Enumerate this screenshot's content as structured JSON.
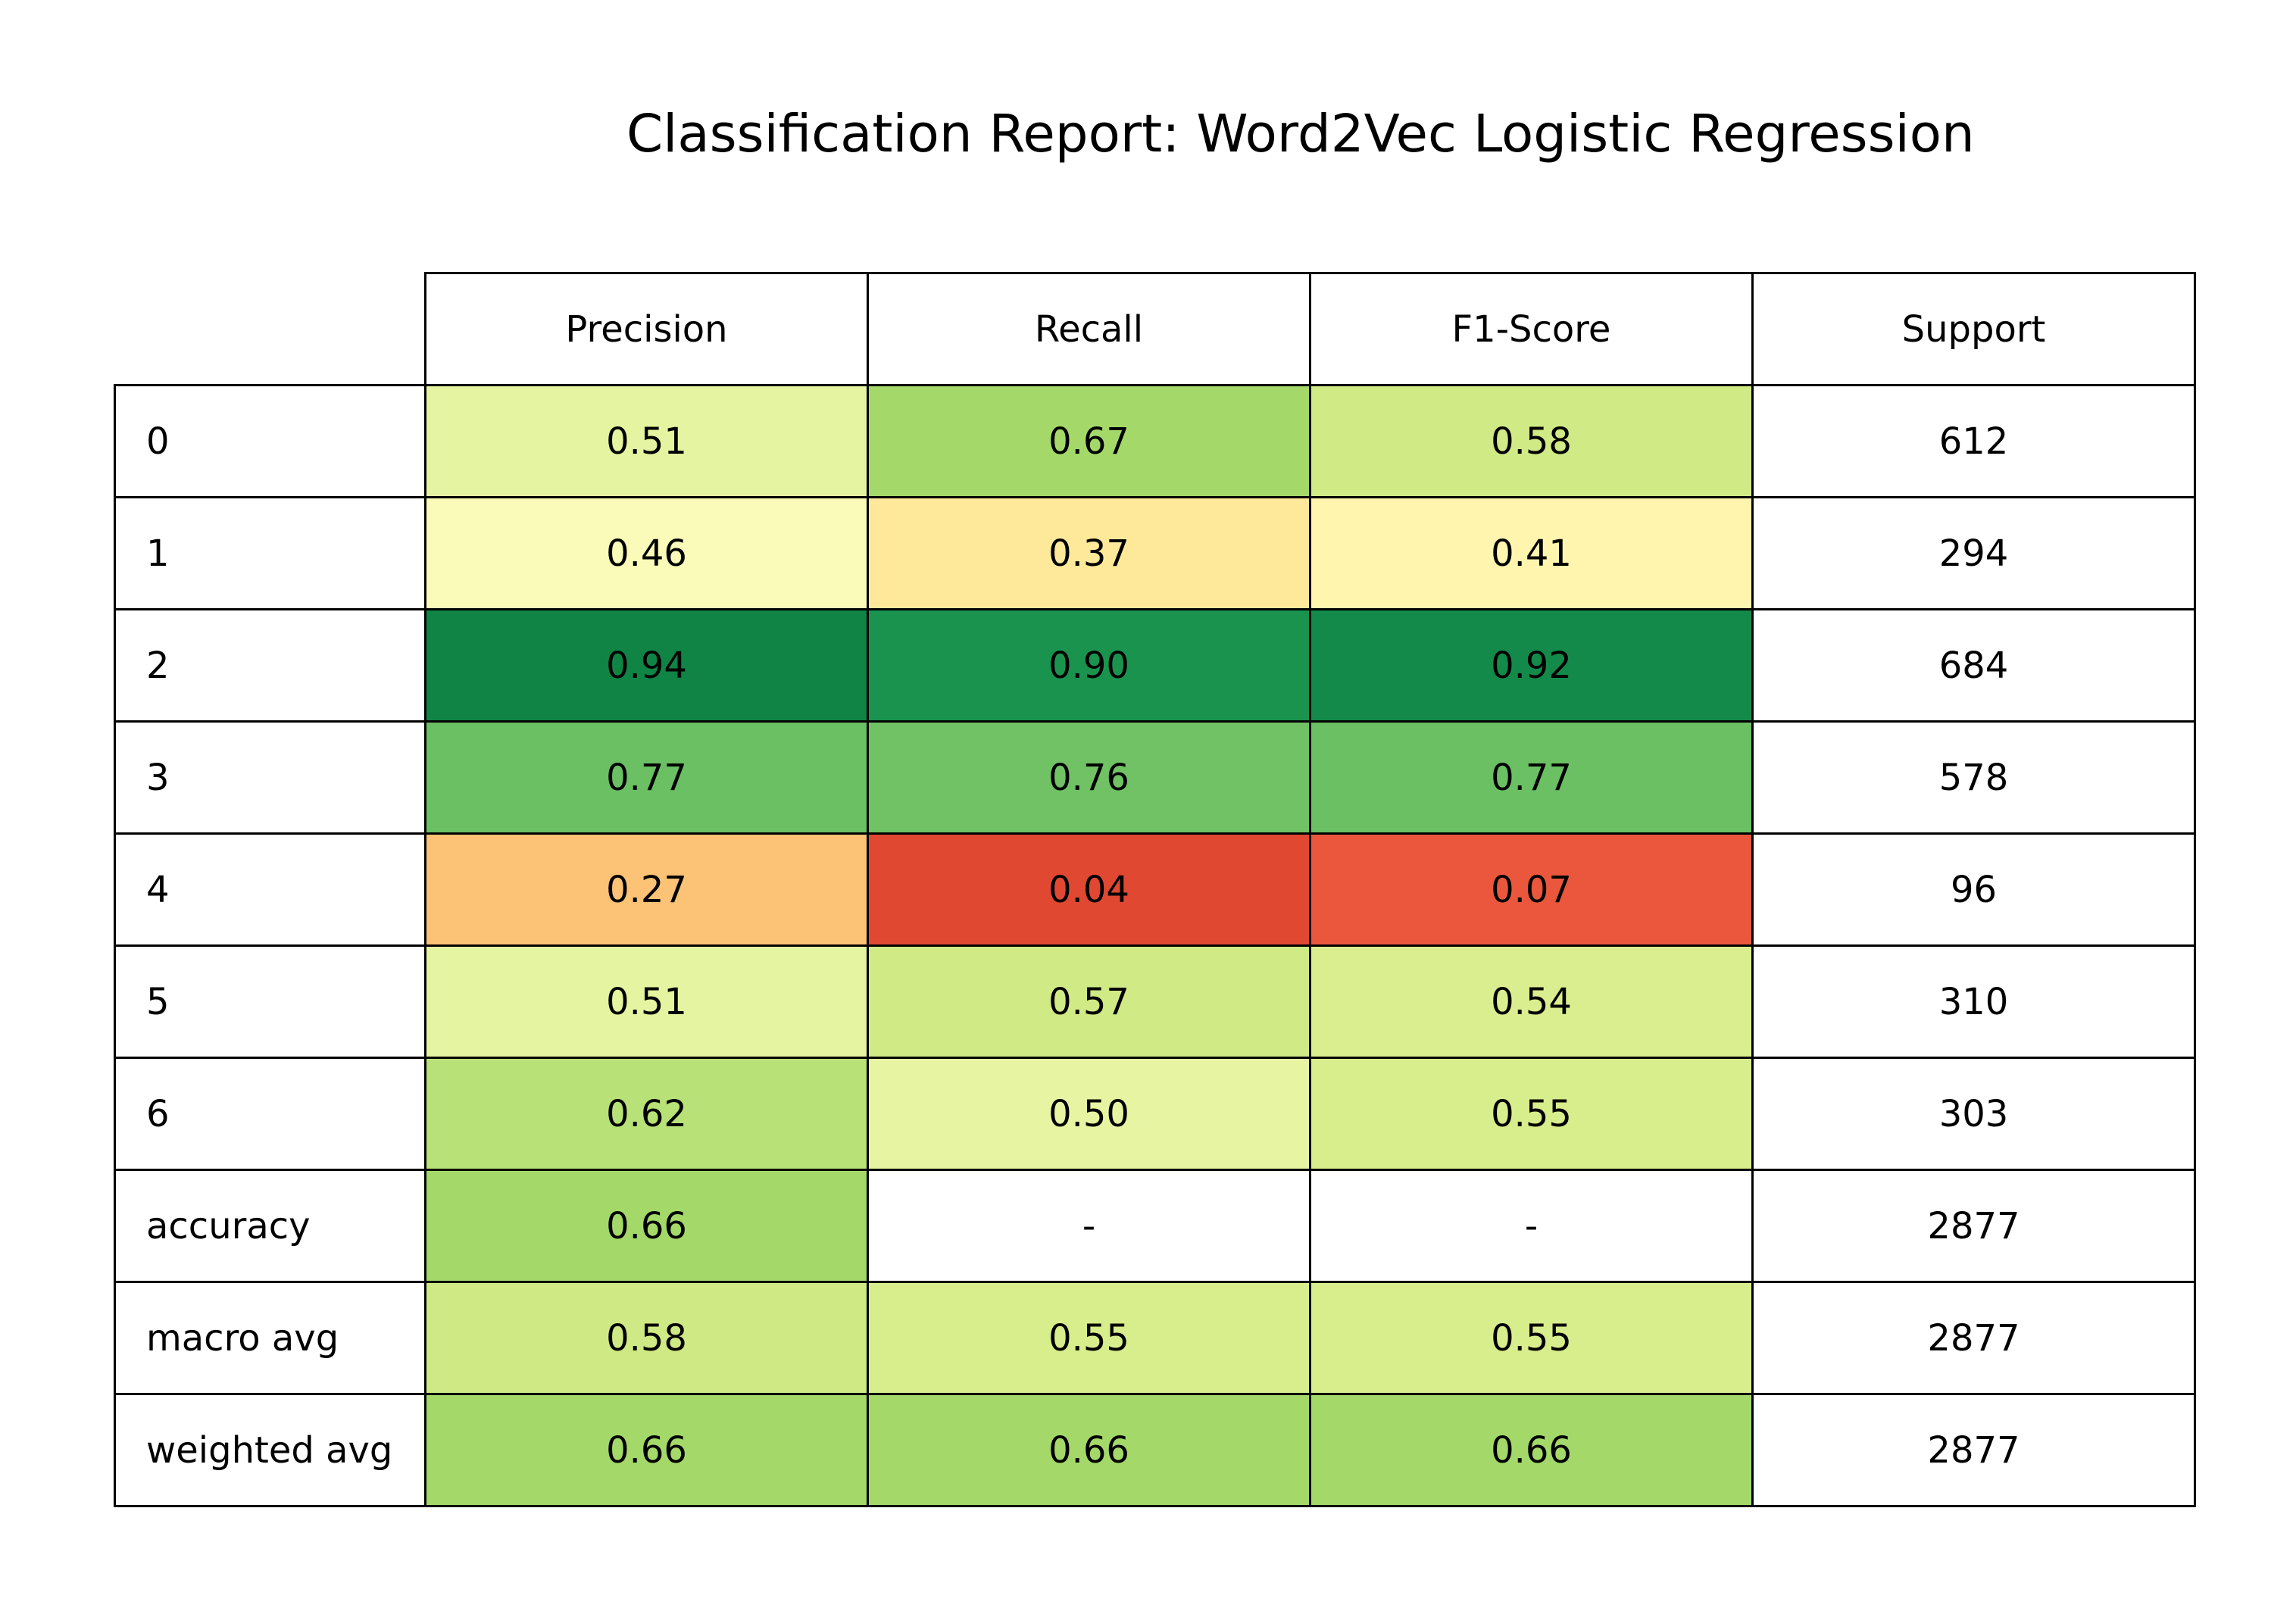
{
  "chart_data": {
    "type": "table",
    "title": "Classification Report: Word2Vec Logistic Regression",
    "columns": [
      "Precision",
      "Recall",
      "F1-Score",
      "Support"
    ],
    "rows": [
      {
        "label": "0",
        "values": [
          "0.51",
          "0.67",
          "0.58",
          "612"
        ],
        "colors": [
          "#e4f4a0",
          "#a4d96a",
          "#d0ea85",
          null
        ]
      },
      {
        "label": "1",
        "values": [
          "0.46",
          "0.37",
          "0.41",
          "294"
        ],
        "colors": [
          "#fafbb8",
          "#fee99a",
          "#fff5ae",
          null
        ]
      },
      {
        "label": "2",
        "values": [
          "0.94",
          "0.90",
          "0.92",
          "684"
        ],
        "colors": [
          "#0f8445",
          "#1a934e",
          "#138a49",
          null
        ]
      },
      {
        "label": "3",
        "values": [
          "0.77",
          "0.76",
          "0.77",
          "578"
        ],
        "colors": [
          "#6ac063",
          "#70c264",
          "#6ac063",
          null
        ]
      },
      {
        "label": "4",
        "values": [
          "0.27",
          "0.04",
          "0.07",
          "96"
        ],
        "colors": [
          "#fcc275",
          "#e04832",
          "#ea573c",
          null
        ]
      },
      {
        "label": "5",
        "values": [
          "0.51",
          "0.57",
          "0.54",
          "310"
        ],
        "colors": [
          "#e4f4a0",
          "#d0ea85",
          "#daee8f",
          null
        ]
      },
      {
        "label": "6",
        "values": [
          "0.62",
          "0.50",
          "0.55",
          "303"
        ],
        "colors": [
          "#b8e177",
          "#e7f5a3",
          "#d8ed8c",
          null
        ]
      },
      {
        "label": "accuracy",
        "values": [
          "0.66",
          "-",
          "-",
          "2877"
        ],
        "colors": [
          "#a4d96a",
          null,
          null,
          null
        ]
      },
      {
        "label": "macro avg",
        "values": [
          "0.58",
          "0.55",
          "0.55",
          "2877"
        ],
        "colors": [
          "#cfea84",
          "#d8ed8c",
          "#d8ed8c",
          null
        ]
      },
      {
        "label": "weighted avg",
        "values": [
          "0.66",
          "0.66",
          "0.66",
          "2877"
        ],
        "colors": [
          "#a4d96a",
          "#a4d96a",
          "#a4d96a",
          null
        ]
      }
    ],
    "colormap": "RdYlGn",
    "grid": true
  }
}
